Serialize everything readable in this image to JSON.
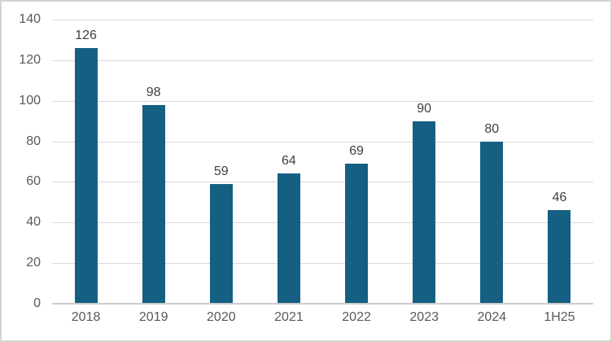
{
  "chart_data": {
    "type": "bar",
    "title": "",
    "xlabel": "",
    "ylabel": "",
    "categories": [
      "2018",
      "2019",
      "2020",
      "2021",
      "2022",
      "2023",
      "2024",
      "1H25"
    ],
    "values": [
      126,
      98,
      59,
      64,
      69,
      90,
      80,
      46
    ],
    "data_labels": [
      "126",
      "98",
      "59",
      "64",
      "69",
      "90",
      "80",
      "46"
    ],
    "ylim": [
      0,
      140
    ],
    "y_ticks": [
      0,
      20,
      40,
      60,
      80,
      100,
      120,
      140
    ],
    "grid": true,
    "legend": "none",
    "colors": {
      "bar_fill": "#156082",
      "gridline": "#d9d9d9",
      "axis_line": "#cdcccc",
      "tick_label": "#595959",
      "data_label": "#404040",
      "border": "#d4d4d4",
      "background": "#ffffff"
    }
  }
}
